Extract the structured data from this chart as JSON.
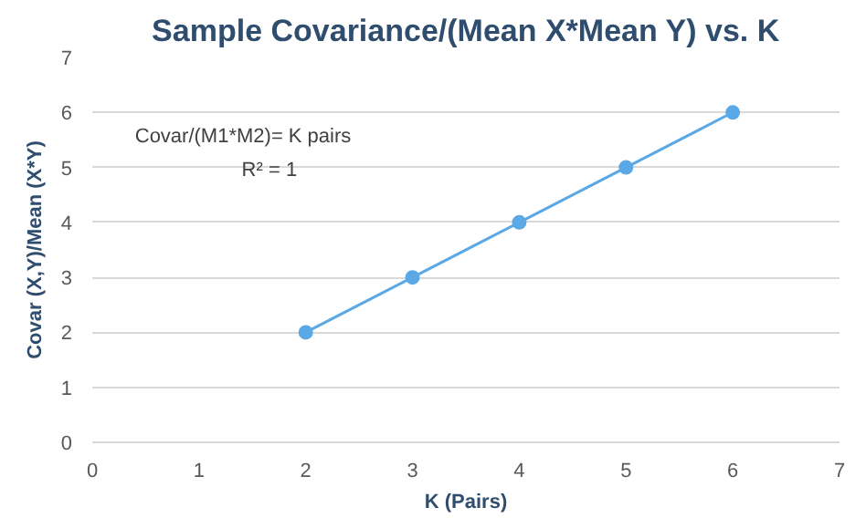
{
  "chart_data": {
    "type": "line",
    "title": "Sample Covariance/(Mean X*Mean Y) vs. K",
    "xlabel": "K (Pairs)",
    "ylabel": "Covar (X,Y)/Mean (X*Y)",
    "x": [
      2,
      3,
      4,
      5,
      6
    ],
    "series": [
      {
        "color": "#5aa9e6",
        "values": [
          2,
          3,
          4,
          5,
          6
        ]
      }
    ],
    "xlim": [
      0,
      7
    ],
    "ylim": [
      0,
      7
    ],
    "xticks": [
      0,
      1,
      2,
      3,
      4,
      5,
      6,
      7
    ],
    "yticks": [
      0,
      1,
      2,
      3,
      4,
      5,
      6,
      7
    ],
    "grid": "y",
    "marker": "circle",
    "line_style": "solid",
    "annotations": [
      "Covar/(M1*M2)= K pairs",
      "R² = 1"
    ]
  }
}
